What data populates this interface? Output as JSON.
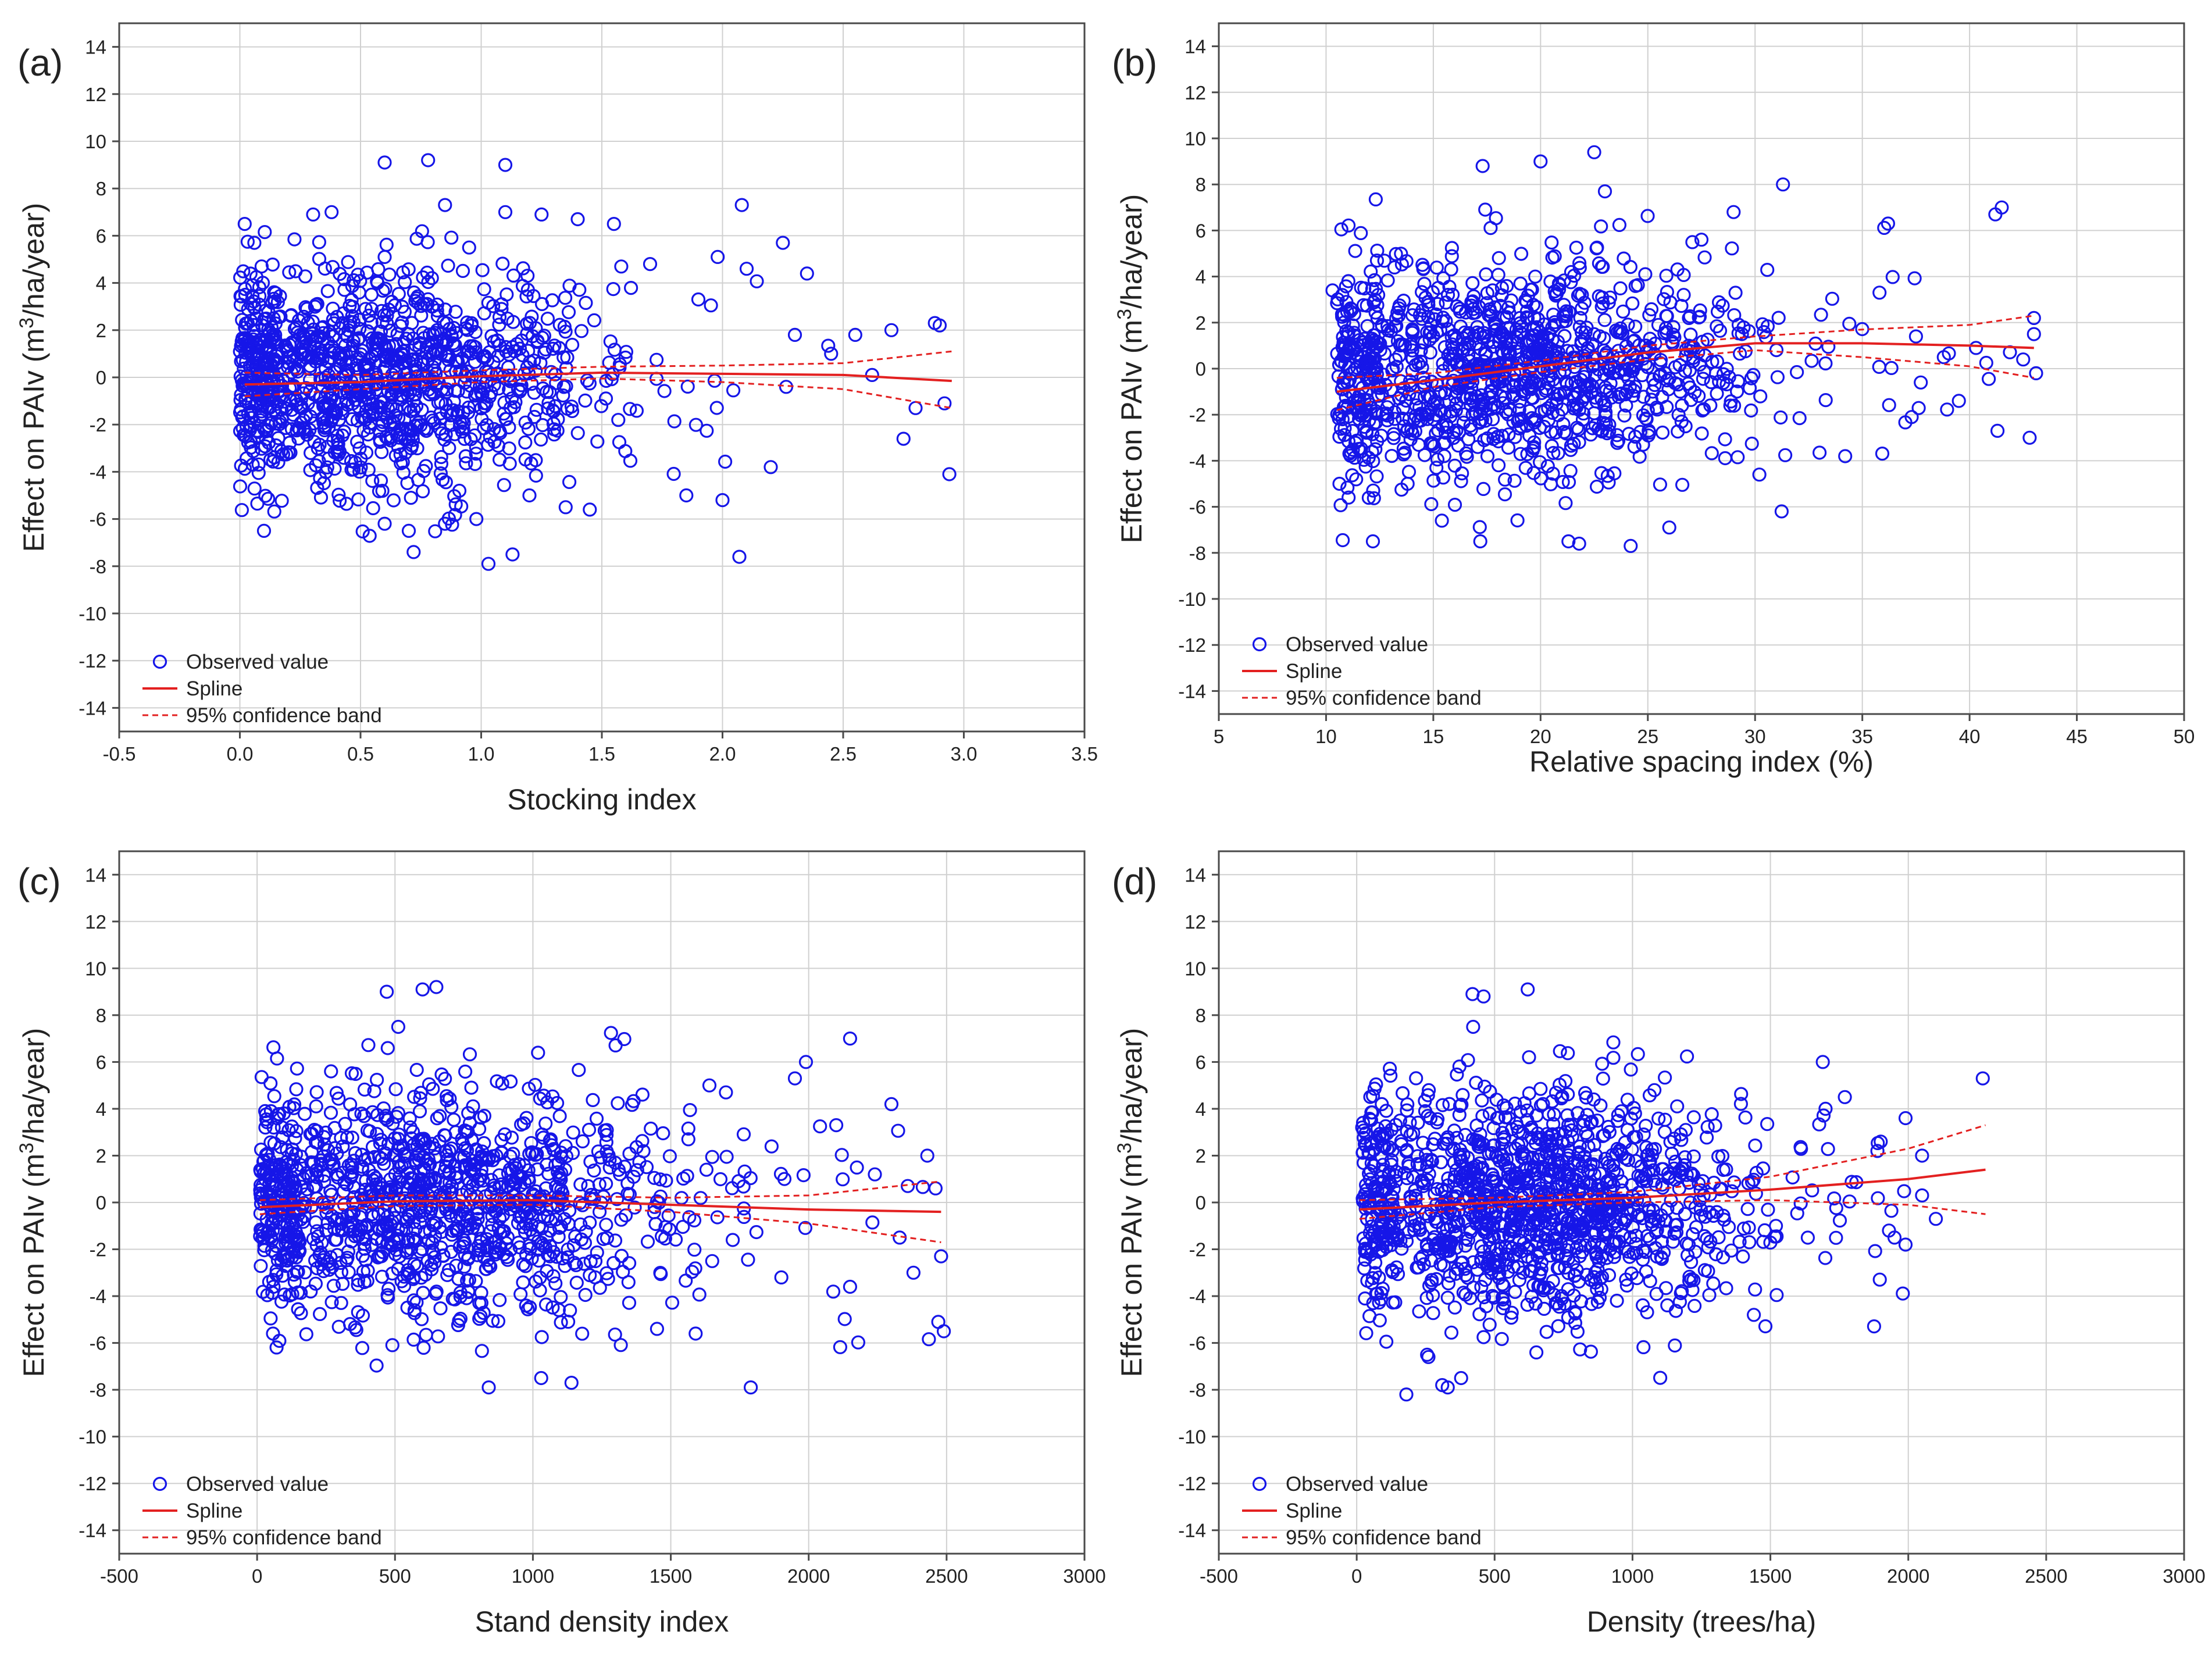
{
  "figure": {
    "colors": {
      "observed": "#1616e8",
      "spline": "#e32020",
      "band": "#e32020",
      "grid": "#d0d0d0",
      "frame": "#4a4a4a"
    },
    "legend": {
      "observed": "Observed value",
      "spline": "Spline",
      "band": "95% confidence band"
    }
  },
  "chart_data": [
    {
      "panel_label": "(a)",
      "type": "scatter",
      "xlabel": "Stocking index",
      "ylabel_main": "Effect on PAIv (m",
      "ylabel_sup": "3",
      "ylabel_tail": "/ha/year)",
      "xlim": [
        -0.5,
        3.5
      ],
      "ylim": [
        -15,
        15
      ],
      "xticks": [
        -0.5,
        0.0,
        0.5,
        1.0,
        1.5,
        2.0,
        2.5,
        3.0,
        3.5
      ],
      "xtick_labels": [
        "-0.5",
        "0.0",
        "0.5",
        "1.0",
        "1.5",
        "2.0",
        "2.5",
        "3.0",
        "3.5"
      ],
      "yticks": [
        -14,
        -12,
        -10,
        -8,
        -6,
        -4,
        -2,
        0,
        2,
        4,
        6,
        8,
        10,
        12,
        14
      ],
      "ytick_labels": [
        "-14",
        "-12",
        "-10",
        "-8",
        "-6",
        "-4",
        "-2",
        "0",
        "2",
        "4",
        "6",
        "8",
        "10",
        "12",
        "14"
      ],
      "points": [
        [
          0.6,
          9.1
        ],
        [
          0.78,
          9.2
        ],
        [
          1.1,
          9.0
        ],
        [
          0.85,
          7.3
        ],
        [
          1.1,
          7.0
        ],
        [
          0.38,
          7.0
        ],
        [
          1.25,
          6.9
        ],
        [
          1.4,
          6.7
        ],
        [
          2.08,
          7.3
        ],
        [
          0.02,
          6.5
        ],
        [
          0.06,
          5.7
        ],
        [
          1.55,
          6.5
        ],
        [
          2.25,
          5.7
        ],
        [
          0.09,
          4.7
        ],
        [
          2.35,
          4.4
        ],
        [
          0.95,
          5.5
        ],
        [
          1.7,
          4.8
        ],
        [
          2.1,
          4.6
        ],
        [
          0.1,
          -6.5
        ],
        [
          0.72,
          -7.4
        ],
        [
          1.03,
          -7.9
        ],
        [
          1.13,
          -7.5
        ],
        [
          2.07,
          -7.6
        ],
        [
          0.98,
          -6.0
        ],
        [
          0.6,
          -6.2
        ],
        [
          1.85,
          -5.0
        ],
        [
          2.0,
          -5.2
        ],
        [
          2.2,
          -3.8
        ],
        [
          2.94,
          -4.1
        ],
        [
          2.75,
          -2.6
        ],
        [
          2.7,
          2.0
        ],
        [
          2.88,
          2.3
        ],
        [
          2.9,
          2.2
        ],
        [
          2.55,
          1.8
        ],
        [
          2.45,
          1.0
        ],
        [
          2.62,
          0.1
        ],
        [
          2.92,
          -1.1
        ],
        [
          2.8,
          -1.3
        ],
        [
          2.3,
          1.8
        ],
        [
          1.9,
          3.3
        ],
        [
          1.98,
          5.1
        ],
        [
          1.45,
          -5.6
        ],
        [
          1.35,
          -5.5
        ],
        [
          0.85,
          -6.2
        ],
        [
          0.7,
          -6.5
        ],
        [
          1.2,
          -5.0
        ]
      ],
      "cloud": {
        "x_center": 0.55,
        "x_spread": 0.5,
        "x_min": 0.0,
        "x_max": 2.95,
        "y_sd": 2.2,
        "count": 1180
      },
      "spline": [
        [
          0.02,
          -0.3
        ],
        [
          0.5,
          -0.2
        ],
        [
          1.0,
          0.05
        ],
        [
          1.5,
          0.2
        ],
        [
          2.0,
          0.15
        ],
        [
          2.5,
          0.1
        ],
        [
          2.95,
          -0.15
        ]
      ],
      "band_upper": [
        [
          0.02,
          0.2
        ],
        [
          0.5,
          0.1
        ],
        [
          1.0,
          0.3
        ],
        [
          1.5,
          0.45
        ],
        [
          2.0,
          0.5
        ],
        [
          2.5,
          0.6
        ],
        [
          2.95,
          1.1
        ]
      ],
      "band_lower": [
        [
          0.02,
          -0.8
        ],
        [
          0.5,
          -0.5
        ],
        [
          1.0,
          -0.2
        ],
        [
          1.5,
          -0.05
        ],
        [
          2.0,
          -0.2
        ],
        [
          2.5,
          -0.5
        ],
        [
          2.95,
          -1.3
        ]
      ]
    },
    {
      "panel_label": "(b)",
      "type": "scatter",
      "xlabel": "Relative spacing index (%)",
      "ylabel_main": "Effect on PAIv (m",
      "ylabel_sup": "3",
      "ylabel_tail": "/ha/year)",
      "xlim": [
        5,
        50
      ],
      "ylim": [
        -15,
        15
      ],
      "xticks": [
        5,
        10,
        15,
        20,
        25,
        30,
        35,
        40,
        45,
        50
      ],
      "xtick_labels": [
        "5",
        "10",
        "15",
        "20",
        "25",
        "30",
        "35",
        "40",
        "45",
        "50"
      ],
      "yticks": [
        -14,
        -12,
        -10,
        -8,
        -6,
        -4,
        -2,
        0,
        2,
        4,
        6,
        8,
        10,
        12,
        14
      ],
      "ytick_labels": [
        "-14",
        "-12",
        "-10",
        "-8",
        "-6",
        "-4",
        "-2",
        "0",
        "2",
        "4",
        "6",
        "8",
        "10",
        "12",
        "14"
      ],
      "points": [
        [
          22.5,
          9.4
        ],
        [
          20.0,
          9.0
        ],
        [
          17.3,
          8.8
        ],
        [
          23.0,
          7.7
        ],
        [
          31.3,
          8.0
        ],
        [
          41.5,
          7.0
        ],
        [
          41.2,
          6.7
        ],
        [
          36.2,
          6.3
        ],
        [
          35.8,
          3.3
        ],
        [
          37.5,
          1.4
        ],
        [
          37.3,
          -2.1
        ],
        [
          39.5,
          -1.4
        ],
        [
          41.3,
          -2.7
        ],
        [
          42.8,
          -3.0
        ],
        [
          43.0,
          2.2
        ],
        [
          43.0,
          1.5
        ],
        [
          42.5,
          0.4
        ],
        [
          43.1,
          -0.2
        ],
        [
          40.3,
          0.9
        ],
        [
          38.8,
          0.5
        ],
        [
          30.2,
          -4.6
        ],
        [
          34.2,
          -3.8
        ],
        [
          24.2,
          -7.7
        ],
        [
          21.3,
          -7.5
        ],
        [
          21.8,
          -7.6
        ],
        [
          26.0,
          -6.9
        ],
        [
          15.4,
          -6.6
        ],
        [
          10.3,
          3.4
        ],
        [
          11.5,
          -1.9
        ],
        [
          12.3,
          -3.5
        ],
        [
          29.0,
          6.8
        ],
        [
          27.5,
          5.6
        ]
      ],
      "cloud": {
        "x_center": 18.5,
        "x_spread": 6.5,
        "x_min": 10.5,
        "x_max": 43.0,
        "y_sd": 2.3,
        "count": 1200
      },
      "spline": [
        [
          10.5,
          -1.0
        ],
        [
          15,
          -0.5
        ],
        [
          20,
          0.1
        ],
        [
          25,
          0.7
        ],
        [
          30,
          1.1
        ],
        [
          35,
          1.1
        ],
        [
          40,
          1.0
        ],
        [
          43,
          0.9
        ]
      ],
      "band_upper": [
        [
          10.5,
          -0.4
        ],
        [
          15,
          -0.2
        ],
        [
          20,
          0.35
        ],
        [
          25,
          1.0
        ],
        [
          30,
          1.4
        ],
        [
          35,
          1.7
        ],
        [
          40,
          1.9
        ],
        [
          43,
          2.3
        ]
      ],
      "band_lower": [
        [
          10.5,
          -1.8
        ],
        [
          15,
          -0.8
        ],
        [
          20,
          -0.15
        ],
        [
          25,
          0.4
        ],
        [
          30,
          0.8
        ],
        [
          35,
          0.5
        ],
        [
          40,
          0.1
        ],
        [
          43,
          -0.4
        ]
      ]
    },
    {
      "panel_label": "(c)",
      "type": "scatter",
      "xlabel": "Stand density index",
      "ylabel_main": "Effect on PAIv (m",
      "ylabel_sup": "3",
      "ylabel_tail": "/ha/year)",
      "xlim": [
        -500,
        3000
      ],
      "ylim": [
        -15,
        15
      ],
      "xticks": [
        -500,
        0,
        500,
        1000,
        1500,
        2000,
        2500,
        3000
      ],
      "xtick_labels": [
        "-500",
        "0",
        "500",
        "1000",
        "1500",
        "2000",
        "2500",
        "3000"
      ],
      "yticks": [
        -14,
        -12,
        -10,
        -8,
        -6,
        -4,
        -2,
        0,
        2,
        4,
        6,
        8,
        10,
        12,
        14
      ],
      "ytick_labels": [
        "-14",
        "-12",
        "-10",
        "-8",
        "-6",
        "-4",
        "-2",
        "0",
        "2",
        "4",
        "6",
        "8",
        "10",
        "12",
        "14"
      ],
      "points": [
        [
          470,
          9.0
        ],
        [
          600,
          9.1
        ],
        [
          650,
          9.2
        ],
        [
          2150,
          7.0
        ],
        [
          1990,
          6.0
        ],
        [
          2300,
          4.2
        ],
        [
          1950,
          5.3
        ],
        [
          2430,
          2.0
        ],
        [
          2460,
          0.6
        ],
        [
          2480,
          -2.3
        ],
        [
          2470,
          -5.1
        ],
        [
          2490,
          -5.5
        ],
        [
          2150,
          -3.6
        ],
        [
          1790,
          -7.9
        ],
        [
          1030,
          -7.5
        ],
        [
          1140,
          -7.7
        ],
        [
          840,
          -7.9
        ],
        [
          2330,
          -1.5
        ],
        [
          1700,
          4.7
        ],
        [
          1640,
          5.0
        ],
        [
          1590,
          -5.6
        ],
        [
          1450,
          -5.4
        ],
        [
          30,
          3.2
        ],
        [
          60,
          3.2
        ],
        [
          2100,
          3.3
        ],
        [
          2240,
          1.2
        ],
        [
          2380,
          -3.0
        ]
      ],
      "cloud": {
        "x_center": 600,
        "x_spread": 520,
        "x_min": 10,
        "x_max": 2480,
        "y_sd": 2.3,
        "count": 1250
      },
      "spline": [
        [
          10,
          -0.2
        ],
        [
          500,
          0.05
        ],
        [
          1000,
          0.1
        ],
        [
          1500,
          -0.1
        ],
        [
          2000,
          -0.3
        ],
        [
          2480,
          -0.4
        ]
      ],
      "band_upper": [
        [
          10,
          0.1
        ],
        [
          500,
          0.3
        ],
        [
          1000,
          0.3
        ],
        [
          1500,
          0.2
        ],
        [
          2000,
          0.3
        ],
        [
          2480,
          0.9
        ]
      ],
      "band_lower": [
        [
          10,
          -0.5
        ],
        [
          500,
          -0.15
        ],
        [
          1000,
          -0.1
        ],
        [
          1500,
          -0.4
        ],
        [
          2000,
          -0.9
        ],
        [
          2480,
          -1.7
        ]
      ]
    },
    {
      "panel_label": "(d)",
      "type": "scatter",
      "xlabel": "Density (trees/ha)",
      "ylabel_main": "Effect on PAIv (m",
      "ylabel_sup": "3",
      "ylabel_tail": "/ha/year)",
      "xlim": [
        -500,
        3000
      ],
      "ylim": [
        -15,
        15
      ],
      "xticks": [
        -500,
        0,
        500,
        1000,
        1500,
        2000,
        2500,
        3000
      ],
      "xtick_labels": [
        "-500",
        "0",
        "500",
        "1000",
        "1500",
        "2000",
        "2500",
        "3000"
      ],
      "yticks": [
        -14,
        -12,
        -10,
        -8,
        -6,
        -4,
        -2,
        0,
        2,
        4,
        6,
        8,
        10,
        12,
        14
      ],
      "ytick_labels": [
        "-14",
        "-12",
        "-10",
        "-8",
        "-6",
        "-4",
        "-2",
        "0",
        "2",
        "4",
        "6",
        "8",
        "10",
        "12",
        "14"
      ],
      "points": [
        [
          420,
          8.9
        ],
        [
          460,
          8.8
        ],
        [
          620,
          9.1
        ],
        [
          2270,
          5.3
        ],
        [
          1690,
          6.0
        ],
        [
          1770,
          4.5
        ],
        [
          1990,
          3.6
        ],
        [
          1950,
          -1.5
        ],
        [
          1990,
          -1.8
        ],
        [
          2050,
          0.3
        ],
        [
          2100,
          -0.7
        ],
        [
          1440,
          -4.8
        ],
        [
          180,
          -8.2
        ],
        [
          310,
          -7.8
        ],
        [
          330,
          -7.9
        ],
        [
          260,
          -6.6
        ],
        [
          20,
          3.2
        ],
        [
          30,
          -4.1
        ],
        [
          60,
          -4.3
        ],
        [
          1900,
          2.6
        ],
        [
          1700,
          4.0
        ],
        [
          2050,
          2.0
        ],
        [
          1930,
          -1.2
        ]
      ],
      "cloud": {
        "x_center": 640,
        "x_spread": 430,
        "x_min": 20,
        "x_max": 2000,
        "y_sd": 2.4,
        "count": 1350
      },
      "spline": [
        [
          10,
          -0.3
        ],
        [
          500,
          0.0
        ],
        [
          1000,
          0.2
        ],
        [
          1500,
          0.55
        ],
        [
          2000,
          1.0
        ],
        [
          2280,
          1.4
        ]
      ],
      "band_upper": [
        [
          10,
          0.1
        ],
        [
          500,
          0.2
        ],
        [
          1000,
          0.45
        ],
        [
          1500,
          1.1
        ],
        [
          2000,
          2.3
        ],
        [
          2280,
          3.3
        ]
      ],
      "band_lower": [
        [
          10,
          -0.7
        ],
        [
          500,
          -0.2
        ],
        [
          1000,
          0.0
        ],
        [
          1500,
          0.1
        ],
        [
          2000,
          -0.1
        ],
        [
          2280,
          -0.5
        ]
      ]
    }
  ]
}
